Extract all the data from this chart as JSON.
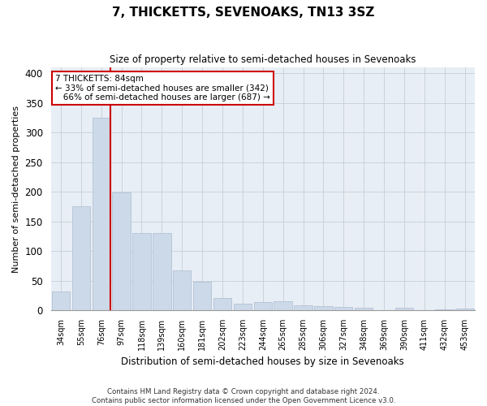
{
  "title": "7, THICKETTS, SEVENOAKS, TN13 3SZ",
  "subtitle": "Size of property relative to semi-detached houses in Sevenoaks",
  "xlabel": "Distribution of semi-detached houses by size in Sevenoaks",
  "ylabel": "Number of semi-detached properties",
  "categories": [
    "34sqm",
    "55sqm",
    "76sqm",
    "97sqm",
    "118sqm",
    "139sqm",
    "160sqm",
    "181sqm",
    "202sqm",
    "223sqm",
    "244sqm",
    "265sqm",
    "285sqm",
    "306sqm",
    "327sqm",
    "348sqm",
    "369sqm",
    "390sqm",
    "411sqm",
    "432sqm",
    "453sqm"
  ],
  "values": [
    32,
    176,
    325,
    199,
    130,
    130,
    67,
    48,
    20,
    11,
    14,
    15,
    9,
    7,
    5,
    4,
    0,
    4,
    0,
    1,
    3
  ],
  "bar_color": "#ccd9e8",
  "bar_edge_color": "#aabbd0",
  "red_line_index": 2,
  "red_line_color": "#cc0000",
  "annotation_line1": "7 THICKETTS: 84sqm",
  "annotation_line2": "← 33% of semi-detached houses are smaller (342)",
  "annotation_line3": "   66% of semi-detached houses are larger (687) →",
  "annotation_box_color": "#ffffff",
  "annotation_box_edge": "#cc0000",
  "ylim": [
    0,
    410
  ],
  "yticks": [
    0,
    50,
    100,
    150,
    200,
    250,
    300,
    350,
    400
  ],
  "footer": "Contains HM Land Registry data © Crown copyright and database right 2024.\nContains public sector information licensed under the Open Government Licence v3.0.",
  "background_color": "#ffffff",
  "plot_bg_color": "#e8eef5",
  "grid_color": "#c5cfd8"
}
